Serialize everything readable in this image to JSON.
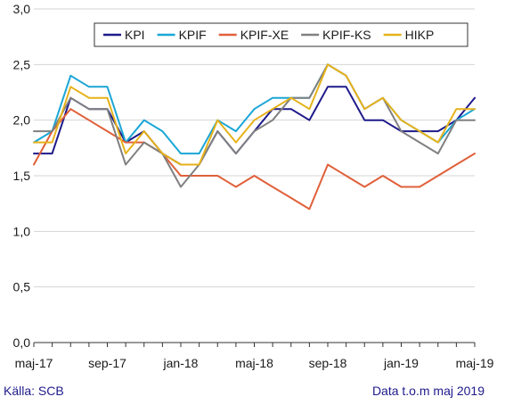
{
  "chart_data": {
    "type": "line",
    "title": "",
    "xlabel": "",
    "ylabel": "",
    "ylim": [
      0,
      3.0
    ],
    "yticks": [
      0,
      0.5,
      1.0,
      1.5,
      2.0,
      2.5,
      3.0
    ],
    "ytick_labels": [
      "0,0",
      "0,5",
      "1,0",
      "1,5",
      "2,0",
      "2,5",
      "3,0"
    ],
    "x": [
      "2017-05",
      "2017-06",
      "2017-07",
      "2017-08",
      "2017-09",
      "2017-10",
      "2017-11",
      "2017-12",
      "2018-01",
      "2018-02",
      "2018-03",
      "2018-04",
      "2018-05",
      "2018-06",
      "2018-07",
      "2018-08",
      "2018-09",
      "2018-10",
      "2018-11",
      "2018-12",
      "2019-01",
      "2019-02",
      "2019-03",
      "2019-04",
      "2019-05"
    ],
    "xtick_labels": [
      {
        "x": "2017-05",
        "label": "maj-17"
      },
      {
        "x": "2017-09",
        "label": "sep-17"
      },
      {
        "x": "2018-01",
        "label": "jan-18"
      },
      {
        "x": "2018-05",
        "label": "maj-18"
      },
      {
        "x": "2018-09",
        "label": "sep-18"
      },
      {
        "x": "2019-01",
        "label": "jan-19"
      },
      {
        "x": "2019-05",
        "label": "maj-19"
      }
    ],
    "grid": "horizontal",
    "legend_position": "top-right",
    "series": [
      {
        "name": "KPI",
        "color": "#1e1a8a",
        "values": [
          1.7,
          1.7,
          2.2,
          2.1,
          2.1,
          1.8,
          1.9,
          1.7,
          1.6,
          1.6,
          1.9,
          1.7,
          1.9,
          2.1,
          2.1,
          2.0,
          2.3,
          2.3,
          2.0,
          2.0,
          1.9,
          1.9,
          1.9,
          2.0,
          2.2
        ]
      },
      {
        "name": "KPIF",
        "color": "#1aa6d6",
        "values": [
          1.8,
          1.9,
          2.4,
          2.3,
          2.3,
          1.8,
          2.0,
          1.9,
          1.7,
          1.7,
          2.0,
          1.9,
          2.1,
          2.2,
          2.2,
          2.2,
          2.5,
          2.4,
          2.1,
          2.2,
          2.0,
          1.9,
          1.8,
          2.0,
          2.1
        ]
      },
      {
        "name": "KPIF-XE",
        "color": "#e0603a",
        "values": [
          1.6,
          1.9,
          2.1,
          2.0,
          1.9,
          1.8,
          1.8,
          1.7,
          1.5,
          1.5,
          1.5,
          1.4,
          1.5,
          1.4,
          1.3,
          1.2,
          1.6,
          1.5,
          1.4,
          1.5,
          1.4,
          1.4,
          1.5,
          1.6,
          1.7
        ]
      },
      {
        "name": "KPIF-KS",
        "color": "#808080",
        "values": [
          1.9,
          1.9,
          2.2,
          2.1,
          2.1,
          1.6,
          1.8,
          1.7,
          1.4,
          1.6,
          1.9,
          1.7,
          1.9,
          2.0,
          2.2,
          2.2,
          2.5,
          2.4,
          2.1,
          2.2,
          1.9,
          1.8,
          1.7,
          2.0,
          2.0
        ]
      },
      {
        "name": "HIKP",
        "color": "#e6b21a",
        "values": [
          1.8,
          1.8,
          2.3,
          2.2,
          2.2,
          1.7,
          1.9,
          1.7,
          1.6,
          1.6,
          2.0,
          1.8,
          2.0,
          2.1,
          2.2,
          2.1,
          2.5,
          2.4,
          2.1,
          2.2,
          2.0,
          1.9,
          1.8,
          2.1,
          2.1
        ]
      }
    ]
  },
  "footer": {
    "source": "Källa: SCB",
    "note": "Data t.o.m maj 2019"
  }
}
